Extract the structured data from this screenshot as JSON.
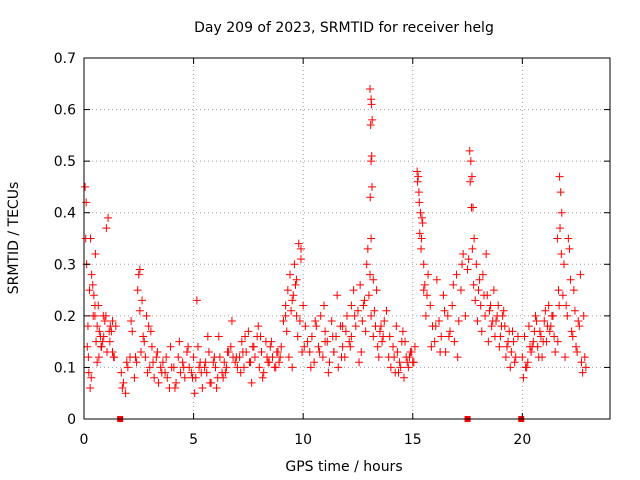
{
  "chart_data": {
    "type": "scatter",
    "title": "Day 209 of 2023, SRMTID for receiver helg",
    "xlabel": "GPS time / hours",
    "ylabel": "SRMTID / TECUs",
    "xlim": [
      0,
      24
    ],
    "ylim": [
      0,
      0.7
    ],
    "xticks": [
      0,
      5,
      10,
      15,
      20
    ],
    "yticks": [
      0,
      0.1,
      0.2,
      0.3,
      0.4,
      0.5,
      0.6,
      0.7
    ],
    "grid": true,
    "marker": "plus",
    "color": "#ff0000",
    "gap_markers_x": [
      1.65,
      17.5,
      19.95
    ],
    "series": [
      {
        "name": "SRMTID",
        "x": [
          0.05,
          0.08,
          0.12,
          0.18,
          0.25,
          0.3,
          0.35,
          0.42,
          0.5,
          0.55,
          0.6,
          0.68,
          0.75,
          0.8,
          0.88,
          0.95,
          1.02,
          1.1,
          1.18,
          1.25,
          1.3,
          1.38,
          1.45,
          0.1,
          0.2,
          0.28,
          0.4,
          0.52,
          0.65,
          0.78,
          0.9,
          1.05,
          1.2,
          1.35,
          0.15,
          0.45,
          0.7,
          1.0,
          1.3,
          0.33,
          0.6,
          0.85,
          1.15,
          0.22,
          0.5,
          1.7,
          1.8,
          1.9,
          2.0,
          2.1,
          2.2,
          2.3,
          2.4,
          2.5,
          2.6,
          2.7,
          2.8,
          2.9,
          3.0,
          3.1,
          3.2,
          3.3,
          3.4,
          3.5,
          3.6,
          3.7,
          3.8,
          3.9,
          4.0,
          1.75,
          1.95,
          2.15,
          2.35,
          2.55,
          2.75,
          2.95,
          3.15,
          3.35,
          3.55,
          3.75,
          3.95,
          2.45,
          2.65,
          2.85,
          3.05,
          2.55,
          4.1,
          4.2,
          4.3,
          4.4,
          4.5,
          4.6,
          4.7,
          4.8,
          4.9,
          5.0,
          5.1,
          5.2,
          5.3,
          5.4,
          5.5,
          5.6,
          5.7,
          5.8,
          5.9,
          6.0,
          6.1,
          6.2,
          6.3,
          6.4,
          6.5,
          6.6,
          6.7,
          6.8,
          6.9,
          7.0,
          4.15,
          4.35,
          4.55,
          4.75,
          4.95,
          5.15,
          5.35,
          5.55,
          5.75,
          5.95,
          6.15,
          6.35,
          6.55,
          6.75,
          6.95,
          5.05,
          5.25,
          5.65,
          6.05,
          6.45,
          7.1,
          7.2,
          7.3,
          7.4,
          7.5,
          7.6,
          7.7,
          7.8,
          7.9,
          8.0,
          8.1,
          8.2,
          8.3,
          8.4,
          8.5,
          8.6,
          8.7,
          8.8,
          8.9,
          9.0,
          9.1,
          9.2,
          7.15,
          7.35,
          7.55,
          7.75,
          7.95,
          8.15,
          8.35,
          8.55,
          8.75,
          8.95,
          7.25,
          7.65,
          8.05,
          8.45,
          8.85,
          9.2,
          9.3,
          9.4,
          9.5,
          9.6,
          9.7,
          9.8,
          9.9,
          10.0,
          10.1,
          10.2,
          9.25,
          9.45,
          9.65,
          9.85,
          10.05,
          9.35,
          9.55,
          9.75,
          9.95,
          9.5,
          9.7,
          9.9,
          10.3,
          10.4,
          10.5,
          10.6,
          10.7,
          10.8,
          10.9,
          11.0,
          11.1,
          11.2,
          11.3,
          11.4,
          11.5,
          11.6,
          11.7,
          11.8,
          11.9,
          12.0,
          12.1,
          12.2,
          12.3,
          12.4,
          12.5,
          10.35,
          10.55,
          10.75,
          10.95,
          11.15,
          11.35,
          11.55,
          11.75,
          11.95,
          12.15,
          12.35,
          12.55,
          11.0,
          11.4,
          11.8,
          12.2,
          12.6,
          12.7,
          12.8,
          12.9,
          13.0,
          13.1,
          13.2,
          13.3,
          13.4,
          13.5,
          13.6,
          13.7,
          13.8,
          12.65,
          12.85,
          13.05,
          13.25,
          13.45,
          13.65,
          13.05,
          13.1,
          13.12,
          13.15,
          13.08,
          13.13,
          13.1,
          13.14,
          13.06,
          13.1,
          13.2,
          12.75,
          12.95,
          13.35,
          13.55,
          13.9,
          14.0,
          14.1,
          14.2,
          14.3,
          14.4,
          14.5,
          14.6,
          14.7,
          14.8,
          14.9,
          15.0,
          15.1,
          13.95,
          14.15,
          14.35,
          14.55,
          14.75,
          14.95,
          14.25,
          14.45,
          14.65,
          14.85,
          15.05,
          15.2,
          15.25,
          15.3,
          15.35,
          15.4,
          15.45,
          15.5,
          15.55,
          15.6,
          15.7,
          15.8,
          15.9,
          16.0,
          16.1,
          16.2,
          16.3,
          16.4,
          16.5,
          16.6,
          16.7,
          16.8,
          16.9,
          17.0,
          17.1,
          17.2,
          17.3,
          17.4,
          15.22,
          15.28,
          15.32,
          15.38,
          15.42,
          15.5,
          15.65,
          15.85,
          16.05,
          16.25,
          16.45,
          16.65,
          16.85,
          17.05,
          17.25,
          17.5,
          17.6,
          17.65,
          17.7,
          17.75,
          17.8,
          17.9,
          18.0,
          18.1,
          18.2,
          18.3,
          18.4,
          18.5,
          18.6,
          18.7,
          18.8,
          18.9,
          19.0,
          19.1,
          19.2,
          19.3,
          19.4,
          19.5,
          19.6,
          19.7,
          19.8,
          17.55,
          17.62,
          17.68,
          17.72,
          17.78,
          17.85,
          17.95,
          18.05,
          18.15,
          18.25,
          18.35,
          18.45,
          18.55,
          18.65,
          18.75,
          18.85,
          18.95,
          19.05,
          19.15,
          19.25,
          19.35,
          19.45,
          19.55,
          19.65,
          20.0,
          20.1,
          20.2,
          20.3,
          20.4,
          20.5,
          20.6,
          20.7,
          20.8,
          20.9,
          21.0,
          21.1,
          21.2,
          21.3,
          21.4,
          21.5,
          20.05,
          20.25,
          20.45,
          20.65,
          20.85,
          21.05,
          21.25,
          21.45,
          20.15,
          20.35,
          20.55,
          20.75,
          20.95,
          21.15,
          21.35,
          21.6,
          21.65,
          21.7,
          21.75,
          21.8,
          21.9,
          22.0,
          22.1,
          22.2,
          22.3,
          22.4,
          22.5,
          22.6,
          22.7,
          22.8,
          22.9,
          21.62,
          21.68,
          21.72,
          21.78,
          21.85,
          21.95,
          22.05,
          22.15,
          22.25,
          22.35,
          22.45,
          22.55,
          22.65,
          22.75,
          22.85
        ],
        "y": [
          0.45,
          0.35,
          0.3,
          0.18,
          0.25,
          0.35,
          0.28,
          0.2,
          0.22,
          0.15,
          0.18,
          0.12,
          0.16,
          0.14,
          0.2,
          0.19,
          0.37,
          0.39,
          0.15,
          0.17,
          0.13,
          0.12,
          0.18,
          0.42,
          0.12,
          0.06,
          0.26,
          0.32,
          0.22,
          0.14,
          0.16,
          0.13,
          0.18,
          0.12,
          0.14,
          0.24,
          0.17,
          0.2,
          0.19,
          0.08,
          0.11,
          0.15,
          0.17,
          0.09,
          0.2,
          0.09,
          0.07,
          0.05,
          0.1,
          0.12,
          0.17,
          0.08,
          0.11,
          0.28,
          0.13,
          0.16,
          0.12,
          0.09,
          0.1,
          0.14,
          0.08,
          0.12,
          0.07,
          0.1,
          0.11,
          0.09,
          0.08,
          0.06,
          0.1,
          0.06,
          0.11,
          0.19,
          0.12,
          0.21,
          0.15,
          0.18,
          0.11,
          0.13,
          0.09,
          0.12,
          0.14,
          0.25,
          0.23,
          0.2,
          0.17,
          0.29,
          0.1,
          0.07,
          0.12,
          0.09,
          0.11,
          0.08,
          0.13,
          0.1,
          0.09,
          0.12,
          0.08,
          0.14,
          0.11,
          0.06,
          0.1,
          0.09,
          0.13,
          0.07,
          0.11,
          0.1,
          0.08,
          0.12,
          0.09,
          0.11,
          0.1,
          0.13,
          0.14,
          0.12,
          0.11,
          0.1,
          0.06,
          0.15,
          0.1,
          0.14,
          0.08,
          0.23,
          0.09,
          0.11,
          0.07,
          0.12,
          0.16,
          0.08,
          0.13,
          0.19,
          0.12,
          0.05,
          0.1,
          0.16,
          0.06,
          0.09,
          0.12,
          0.15,
          0.1,
          0.13,
          0.17,
          0.11,
          0.14,
          0.12,
          0.16,
          0.1,
          0.13,
          0.09,
          0.15,
          0.11,
          0.14,
          0.12,
          0.1,
          0.13,
          0.11,
          0.14,
          0.19,
          0.22,
          0.09,
          0.16,
          0.11,
          0.14,
          0.18,
          0.08,
          0.12,
          0.15,
          0.1,
          0.12,
          0.13,
          0.07,
          0.16,
          0.11,
          0.13,
          0.2,
          0.25,
          0.28,
          0.23,
          0.3,
          0.27,
          0.34,
          0.33,
          0.22,
          0.18,
          0.15,
          0.17,
          0.21,
          0.26,
          0.19,
          0.14,
          0.12,
          0.24,
          0.16,
          0.13,
          0.1,
          0.2,
          0.31,
          0.13,
          0.16,
          0.11,
          0.18,
          0.14,
          0.2,
          0.12,
          0.17,
          0.15,
          0.11,
          0.19,
          0.13,
          0.16,
          0.1,
          0.18,
          0.14,
          0.12,
          0.2,
          0.15,
          0.22,
          0.25,
          0.18,
          0.21,
          0.1,
          0.19,
          0.13,
          0.22,
          0.09,
          0.16,
          0.24,
          0.12,
          0.17,
          0.14,
          0.2,
          0.11,
          0.15,
          0.13,
          0.18,
          0.16,
          0.26,
          0.19,
          0.23,
          0.3,
          0.24,
          0.2,
          0.16,
          0.18,
          0.14,
          0.17,
          0.15,
          0.19,
          0.21,
          0.13,
          0.17,
          0.28,
          0.21,
          0.12,
          0.16,
          0.64,
          0.62,
          0.61,
          0.58,
          0.57,
          0.51,
          0.5,
          0.45,
          0.43,
          0.35,
          0.27,
          0.22,
          0.33,
          0.25,
          0.18,
          0.12,
          0.1,
          0.14,
          0.09,
          0.13,
          0.11,
          0.15,
          0.08,
          0.12,
          0.1,
          0.13,
          0.11,
          0.14,
          0.16,
          0.12,
          0.09,
          0.17,
          0.11,
          0.13,
          0.18,
          0.1,
          0.15,
          0.12,
          0.11,
          0.48,
          0.47,
          0.42,
          0.4,
          0.35,
          0.38,
          0.3,
          0.26,
          0.2,
          0.28,
          0.22,
          0.18,
          0.15,
          0.27,
          0.19,
          0.16,
          0.24,
          0.13,
          0.2,
          0.17,
          0.22,
          0.15,
          0.28,
          0.19,
          0.25,
          0.32,
          0.2,
          0.46,
          0.44,
          0.36,
          0.33,
          0.39,
          0.25,
          0.24,
          0.14,
          0.18,
          0.13,
          0.21,
          0.16,
          0.26,
          0.12,
          0.3,
          0.29,
          0.52,
          0.5,
          0.47,
          0.41,
          0.35,
          0.3,
          0.25,
          0.22,
          0.28,
          0.2,
          0.24,
          0.21,
          0.18,
          0.25,
          0.19,
          0.22,
          0.16,
          0.2,
          0.18,
          0.14,
          0.17,
          0.13,
          0.15,
          0.12,
          0.16,
          0.31,
          0.46,
          0.41,
          0.33,
          0.26,
          0.23,
          0.19,
          0.27,
          0.17,
          0.24,
          0.32,
          0.15,
          0.22,
          0.19,
          0.16,
          0.2,
          0.14,
          0.18,
          0.21,
          0.12,
          0.15,
          0.1,
          0.17,
          0.11,
          0.12,
          0.16,
          0.1,
          0.18,
          0.13,
          0.15,
          0.2,
          0.14,
          0.17,
          0.12,
          0.19,
          0.15,
          0.22,
          0.18,
          0.2,
          0.13,
          0.08,
          0.11,
          0.14,
          0.19,
          0.16,
          0.21,
          0.17,
          0.16,
          0.1,
          0.14,
          0.17,
          0.12,
          0.15,
          0.18,
          0.2,
          0.35,
          0.25,
          0.47,
          0.44,
          0.4,
          0.3,
          0.22,
          0.35,
          0.27,
          0.16,
          0.21,
          0.13,
          0.18,
          0.11,
          0.2,
          0.1,
          0.15,
          0.22,
          0.37,
          0.32,
          0.24,
          0.12,
          0.2,
          0.33,
          0.17,
          0.25,
          0.14,
          0.19,
          0.28,
          0.09,
          0.12
        ]
      }
    ]
  }
}
